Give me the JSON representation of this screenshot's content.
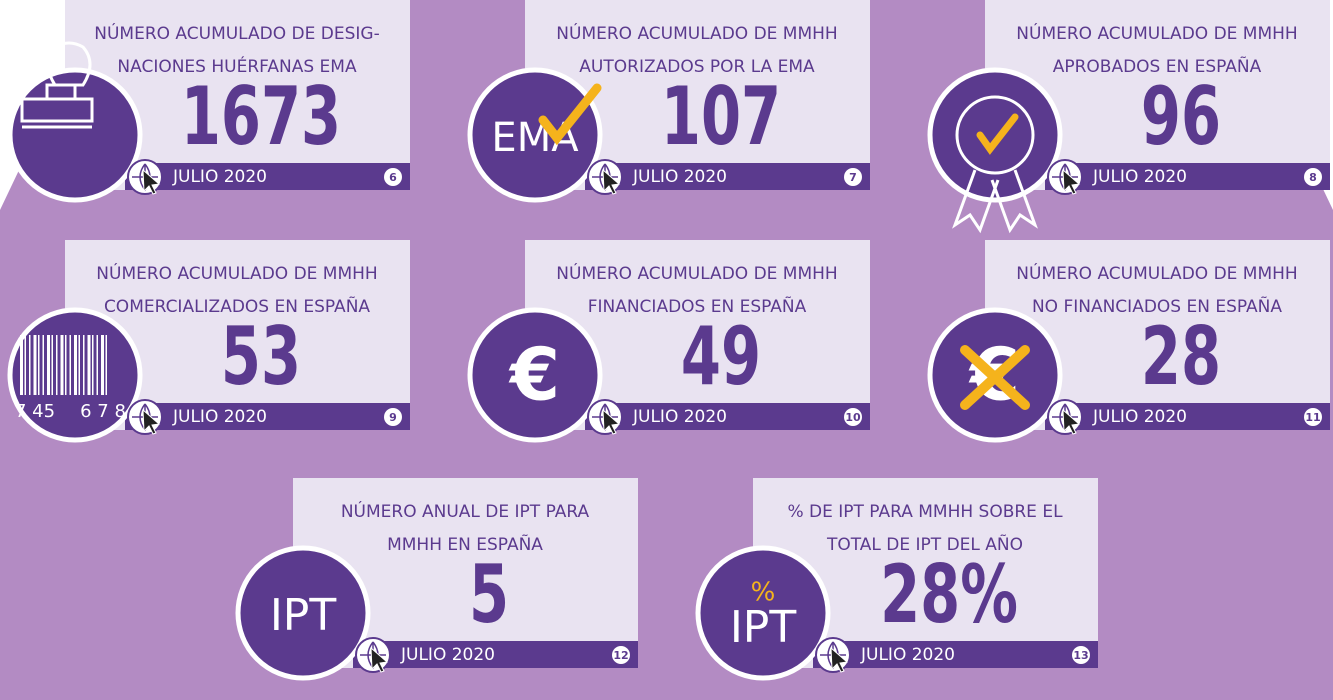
{
  "cards": [
    {
      "title": [
        "NÚMERO ACUMULADO DE DESIG-",
        "NACIONES HUÉRFANAS EMA"
      ],
      "value": "1673",
      "date": "JULIO 2020",
      "number": 6
    },
    {
      "title": [
        "NÚMERO ACUMULADO DE MMHH",
        "AUTORIZADOS POR LA EMA"
      ],
      "value": "107",
      "date": "JULIO 2020",
      "number": 7,
      "icon_text": [
        "EMA"
      ]
    },
    {
      "title": [
        "NÚMERO ACUMULADO DE MMHH",
        "APROBADOS EN ESPAÑA"
      ],
      "value": "96",
      "date": "JULIO 2020",
      "number": 8
    },
    {
      "title": [
        "NÚMERO ACUMULADO DE MMHH",
        "COMERCIALIZADOS EN ESPAÑA"
      ],
      "value": "53",
      "date": "JULIO 2020",
      "number": 9,
      "icon_text": [
        "7 45",
        "6 7 8"
      ]
    },
    {
      "title": [
        "NÚMERO ACUMULADO DE MMHH",
        "FINANCIADOS EN ESPAÑA"
      ],
      "value": "49",
      "date": "JULIO 2020",
      "number": 10,
      "icon_text": [
        "€"
      ]
    },
    {
      "title": [
        "NÚMERO ACUMULADO DE MMHH",
        "NO FINANCIADOS EN ESPAÑA"
      ],
      "value": "28",
      "date": "JULIO 2020",
      "number": 11,
      "icon_text": [
        "€"
      ]
    },
    {
      "title": [
        "NÚMERO ANUAL DE IPT PARA",
        "MMHH EN ESPAÑA"
      ],
      "value": "5",
      "date": "JULIO 2020",
      "number": 12,
      "icon_text": [
        "IPT"
      ]
    },
    {
      "title": [
        "% DE IPT PARA MMHH SOBRE EL",
        "TOTAL DE IPT DEL AÑO"
      ],
      "value": "28%",
      "date": "JULIO 2020",
      "number": 13,
      "icon_text": [
        "%",
        "IPT"
      ]
    }
  ]
}
